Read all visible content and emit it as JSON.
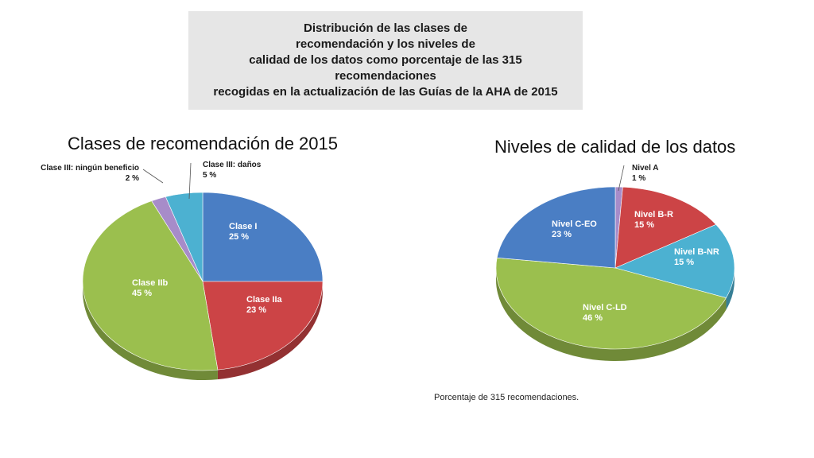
{
  "header": {
    "lines": [
      "Distribución de las clases de",
      "recomendación y los niveles de",
      "calidad de los datos como porcentaje de las 315",
      "recomendaciones",
      "recogidas en la actualización de las Guías de la AHA de 2015"
    ]
  },
  "footnote": "Porcentaje de 315 recomendaciones.",
  "chart_data": [
    {
      "type": "pie",
      "title": "Clases de recomendación de 2015",
      "unit": "%",
      "slices": [
        {
          "label": "Clase I",
          "value": 25,
          "value_label": "25 %",
          "color": "#4a7ec4"
        },
        {
          "label": "Clase IIa",
          "value": 23,
          "value_label": "23 %",
          "color": "#cc4446"
        },
        {
          "label": "Clase IIb",
          "value": 45,
          "value_label": "45 %",
          "color": "#9bbf4e"
        },
        {
          "label": "Clase III: ningún beneficio",
          "value": 2,
          "value_label": "2 %",
          "color": "#a78cc9"
        },
        {
          "label": "Clase III: daños",
          "value": 5,
          "value_label": "5 %",
          "color": "#4cb1d1"
        }
      ]
    },
    {
      "type": "pie",
      "title": "Niveles de calidad de los datos",
      "unit": "%",
      "slices": [
        {
          "label": "Nivel A",
          "value": 1,
          "value_label": "1 %",
          "color": "#a78cc9"
        },
        {
          "label": "Nivel B-R",
          "value": 15,
          "value_label": "15 %",
          "color": "#cc4446"
        },
        {
          "label": "Nivel B-NR",
          "value": 15,
          "value_label": "15 %",
          "color": "#4cb1d1"
        },
        {
          "label": "Nivel C-LD",
          "value": 46,
          "value_label": "46 %",
          "color": "#9bbf4e"
        },
        {
          "label": "Nivel C-EO",
          "value": 23,
          "value_label": "23 %",
          "color": "#4a7ec4"
        }
      ]
    }
  ]
}
